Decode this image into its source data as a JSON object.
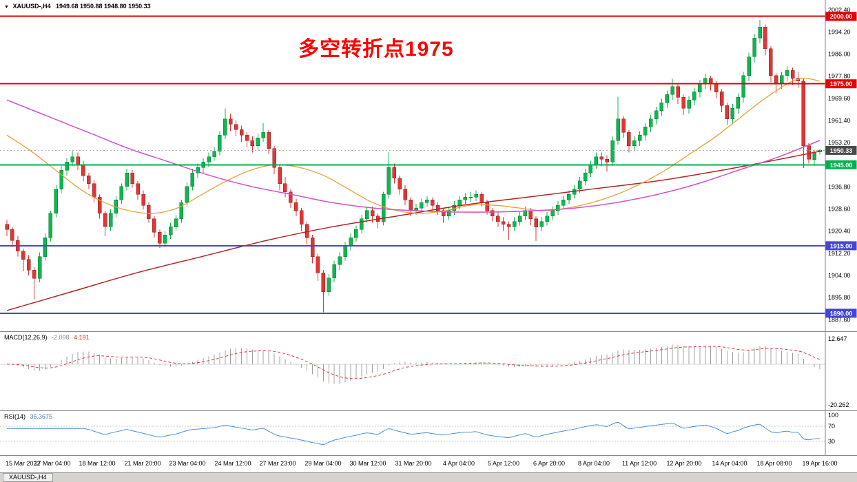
{
  "header": {
    "collapse_icon": "▼",
    "symbol": "XAUUSD-,H4",
    "ohlc": "1949.68 1950.88 1948.80 1950.33"
  },
  "bottom": {
    "tab": "XAUUSD-,H4"
  },
  "chart_data": {
    "type": "candlestick",
    "symbol": "XAUUSD-",
    "timeframe": "H4",
    "annotation": "多空转折点1975",
    "annotation_color": "#fe0000",
    "y_axis": {
      "max": 2004,
      "min": 1884,
      "ticks": [
        "2002.40",
        "1994.20",
        "1986.00",
        "1977.80",
        "1969.60",
        "1961.40",
        "1953.20",
        "1945.00",
        "1936.80",
        "1928.60",
        "1920.40",
        "1912.20",
        "1904.00",
        "1895.80",
        "1887.60"
      ]
    },
    "x_labels": [
      "15 Mar 2022",
      "17 Mar 04:00",
      "18 Mar 12:00",
      "21 Mar 20:00",
      "23 Mar 04:00",
      "24 Mar 12:00",
      "27 Mar 23:00",
      "29 Mar 04:00",
      "30 Mar 12:00",
      "31 Mar 20:00",
      "4 Apr 04:00",
      "5 Apr 12:00",
      "6 Apr 20:00",
      "8 Apr 04:00",
      "11 Apr 12:00",
      "12 Apr 20:00",
      "14 Apr 04:00",
      "18 Apr 08:00",
      "19 Apr 16:00"
    ],
    "candle_colors": {
      "up": "#0fb64f",
      "up_border": "#067a33",
      "down": "#e03535",
      "down_border": "#8f1f1f"
    },
    "levels": [
      {
        "price": 2000.0,
        "label": "2000.00",
        "color": "#e60000"
      },
      {
        "price": 1975.0,
        "label": "1975.00",
        "color": "#e60000"
      },
      {
        "price": 1945.0,
        "label": "1945.00",
        "color": "#00b050"
      },
      {
        "price": 1915.0,
        "label": "1915.00",
        "color": "#4545d5"
      },
      {
        "price": 1890.0,
        "label": "1890.00",
        "color": "#4545d5"
      }
    ],
    "current_price": {
      "value": 1950.33,
      "label": "1950.33",
      "color": "#4a4a4a"
    },
    "moving_averages": [
      {
        "name": "ma-long-darkred",
        "color": "#b22222",
        "width": 1.5,
        "points": [
          [
            0,
            1891
          ],
          [
            0.08,
            1898
          ],
          [
            0.16,
            1905
          ],
          [
            0.24,
            1911
          ],
          [
            0.32,
            1917
          ],
          [
            0.4,
            1922
          ],
          [
            0.48,
            1926
          ],
          [
            0.56,
            1930
          ],
          [
            0.64,
            1933
          ],
          [
            0.72,
            1936
          ],
          [
            0.8,
            1939
          ],
          [
            0.88,
            1943
          ],
          [
            0.95,
            1947
          ],
          [
            1,
            1950
          ]
        ]
      },
      {
        "name": "ma-medium-orange",
        "color": "#e5a13c",
        "width": 1.3,
        "points": [
          [
            0,
            1956
          ],
          [
            0.03,
            1950
          ],
          [
            0.06,
            1943
          ],
          [
            0.09,
            1936
          ],
          [
            0.12,
            1931
          ],
          [
            0.15,
            1928
          ],
          [
            0.18,
            1927
          ],
          [
            0.21,
            1929
          ],
          [
            0.24,
            1934
          ],
          [
            0.27,
            1939
          ],
          [
            0.3,
            1943
          ],
          [
            0.33,
            1945
          ],
          [
            0.36,
            1944
          ],
          [
            0.39,
            1941
          ],
          [
            0.42,
            1936
          ],
          [
            0.45,
            1931
          ],
          [
            0.48,
            1928
          ],
          [
            0.51,
            1927
          ],
          [
            0.54,
            1928
          ],
          [
            0.57,
            1930
          ],
          [
            0.6,
            1930
          ],
          [
            0.63,
            1929
          ],
          [
            0.66,
            1928
          ],
          [
            0.69,
            1929
          ],
          [
            0.72,
            1931
          ],
          [
            0.75,
            1934
          ],
          [
            0.78,
            1938
          ],
          [
            0.81,
            1943
          ],
          [
            0.84,
            1949
          ],
          [
            0.87,
            1955
          ],
          [
            0.9,
            1962
          ],
          [
            0.93,
            1969
          ],
          [
            0.96,
            1975
          ],
          [
            0.98,
            1977
          ],
          [
            1,
            1976
          ]
        ]
      },
      {
        "name": "ma-slow-magenta",
        "color": "#d050c8",
        "width": 1.5,
        "points": [
          [
            0,
            1969
          ],
          [
            0.05,
            1963
          ],
          [
            0.1,
            1957
          ],
          [
            0.15,
            1951
          ],
          [
            0.2,
            1946
          ],
          [
            0.25,
            1941
          ],
          [
            0.3,
            1937
          ],
          [
            0.35,
            1934
          ],
          [
            0.4,
            1931
          ],
          [
            0.45,
            1929
          ],
          [
            0.5,
            1928
          ],
          [
            0.55,
            1927.5
          ],
          [
            0.6,
            1927.5
          ],
          [
            0.65,
            1928
          ],
          [
            0.7,
            1929
          ],
          [
            0.75,
            1931
          ],
          [
            0.8,
            1934
          ],
          [
            0.85,
            1938
          ],
          [
            0.9,
            1943
          ],
          [
            0.95,
            1948
          ],
          [
            1,
            1954
          ]
        ]
      }
    ],
    "candles": [
      [
        1923,
        1924.5,
        1918.5,
        1921
      ],
      [
        1921,
        1922,
        1914.5,
        1917
      ],
      [
        1917,
        1918.5,
        1911,
        1913
      ],
      [
        1913,
        1914,
        1905.5,
        1910
      ],
      [
        1910,
        1911.5,
        1904,
        1906
      ],
      [
        1906,
        1907,
        1895.2,
        1903
      ],
      [
        1903,
        1912.5,
        1901.5,
        1911
      ],
      [
        1911,
        1919.5,
        1909.5,
        1918
      ],
      [
        1918,
        1928,
        1916.5,
        1927
      ],
      [
        1927,
        1937.5,
        1925.5,
        1936
      ],
      [
        1936,
        1944.5,
        1934.5,
        1943
      ],
      [
        1943,
        1947.5,
        1941,
        1946
      ],
      [
        1946,
        1950.2,
        1944.5,
        1948
      ],
      [
        1948,
        1949.5,
        1943,
        1945
      ],
      [
        1945,
        1946.5,
        1939,
        1941
      ],
      [
        1941,
        1942,
        1936,
        1938
      ],
      [
        1938,
        1939.5,
        1931,
        1933
      ],
      [
        1933,
        1934,
        1925,
        1927
      ],
      [
        1927,
        1928,
        1918.5,
        1922
      ],
      [
        1922,
        1928.5,
        1920.5,
        1927
      ],
      [
        1927,
        1933.5,
        1925.5,
        1932
      ],
      [
        1932,
        1938,
        1930.5,
        1937
      ],
      [
        1937,
        1943.5,
        1935.5,
        1942
      ],
      [
        1942,
        1943,
        1936.5,
        1938
      ],
      [
        1938,
        1939,
        1932,
        1934
      ],
      [
        1934,
        1935.5,
        1928.5,
        1930
      ],
      [
        1930,
        1931,
        1923.5,
        1925
      ],
      [
        1925,
        1926,
        1918,
        1920
      ],
      [
        1920,
        1921,
        1914.2,
        1916
      ],
      [
        1916,
        1920.5,
        1914.5,
        1919
      ],
      [
        1919,
        1923.5,
        1917.5,
        1922
      ],
      [
        1922,
        1926.5,
        1920.5,
        1925
      ],
      [
        1925,
        1932,
        1923.5,
        1931
      ],
      [
        1931,
        1938.5,
        1929.5,
        1937
      ],
      [
        1937,
        1943.5,
        1935.5,
        1942
      ],
      [
        1942,
        1945.5,
        1940,
        1944
      ],
      [
        1944,
        1947.5,
        1942,
        1946
      ],
      [
        1946,
        1949.5,
        1944,
        1948
      ],
      [
        1948,
        1951.5,
        1946.5,
        1950
      ],
      [
        1950,
        1957.5,
        1948.5,
        1956
      ],
      [
        1956,
        1965.8,
        1954.5,
        1962
      ],
      [
        1962,
        1964,
        1957.5,
        1960
      ],
      [
        1960,
        1961.5,
        1955.5,
        1958
      ],
      [
        1958,
        1959.5,
        1953.5,
        1956
      ],
      [
        1956,
        1957,
        1951.5,
        1954
      ],
      [
        1954,
        1955.5,
        1949.5,
        1952
      ],
      [
        1952,
        1956.5,
        1950.5,
        1955
      ],
      [
        1955,
        1960.5,
        1953.5,
        1957
      ],
      [
        1957,
        1958,
        1949,
        1951
      ],
      [
        1951,
        1952,
        1941.5,
        1944
      ],
      [
        1944,
        1945,
        1935.5,
        1938
      ],
      [
        1938,
        1940.5,
        1933,
        1935
      ],
      [
        1935,
        1936,
        1929,
        1931
      ],
      [
        1931,
        1932.5,
        1926,
        1928
      ],
      [
        1928,
        1929,
        1920.5,
        1923
      ],
      [
        1923,
        1924,
        1915.5,
        1918
      ],
      [
        1918,
        1919,
        1908.5,
        1911
      ],
      [
        1911,
        1912,
        1902,
        1905
      ],
      [
        1905,
        1906,
        1890.3,
        1898
      ],
      [
        1898,
        1904.5,
        1896.5,
        1903
      ],
      [
        1903,
        1909.5,
        1901.5,
        1908
      ],
      [
        1908,
        1912.5,
        1906,
        1911
      ],
      [
        1911,
        1916.5,
        1909.5,
        1915
      ],
      [
        1915,
        1919.5,
        1913,
        1918
      ],
      [
        1918,
        1922.5,
        1916.5,
        1921
      ],
      [
        1921,
        1926.5,
        1919.5,
        1925
      ],
      [
        1925,
        1929.5,
        1923.5,
        1928
      ],
      [
        1928,
        1929.5,
        1923.5,
        1926
      ],
      [
        1926,
        1927,
        1921.5,
        1924
      ],
      [
        1924,
        1935,
        1922.5,
        1934
      ],
      [
        1934,
        1949.8,
        1932.5,
        1944
      ],
      [
        1944,
        1945.5,
        1938,
        1940
      ],
      [
        1940,
        1941,
        1934,
        1936
      ],
      [
        1936,
        1937.5,
        1930,
        1932
      ],
      [
        1932,
        1933,
        1926,
        1928
      ],
      [
        1928,
        1930.5,
        1926.5,
        1929
      ],
      [
        1929,
        1932.5,
        1927.5,
        1931
      ],
      [
        1931,
        1933.5,
        1929.5,
        1932
      ],
      [
        1932,
        1933,
        1928.5,
        1930
      ],
      [
        1930,
        1931,
        1926.5,
        1928
      ],
      [
        1928,
        1929,
        1923.5,
        1926
      ],
      [
        1926,
        1929.5,
        1924.5,
        1928
      ],
      [
        1928,
        1931.5,
        1926.5,
        1930
      ],
      [
        1930,
        1933.5,
        1928.5,
        1932
      ],
      [
        1932,
        1934.5,
        1930.5,
        1933
      ],
      [
        1933,
        1935,
        1931,
        1933
      ],
      [
        1933,
        1935.5,
        1931.5,
        1934
      ],
      [
        1934,
        1935,
        1929.5,
        1931
      ],
      [
        1931,
        1932,
        1926.5,
        1928
      ],
      [
        1928,
        1929,
        1924,
        1926
      ],
      [
        1926,
        1927.5,
        1922,
        1924
      ],
      [
        1924,
        1925.5,
        1920.5,
        1923
      ],
      [
        1923,
        1924,
        1917.3,
        1922
      ],
      [
        1922,
        1925.5,
        1920.5,
        1924
      ],
      [
        1924,
        1927.5,
        1922.5,
        1926
      ],
      [
        1926,
        1929.5,
        1924.5,
        1928
      ],
      [
        1928,
        1929,
        1922.5,
        1925
      ],
      [
        1925,
        1926,
        1916.8,
        1922
      ],
      [
        1922,
        1925.5,
        1920.5,
        1924
      ],
      [
        1924,
        1927.5,
        1922.5,
        1926
      ],
      [
        1926,
        1929.5,
        1924.5,
        1928
      ],
      [
        1928,
        1931.5,
        1926.5,
        1930
      ],
      [
        1930,
        1933.5,
        1928.5,
        1932
      ],
      [
        1932,
        1935.5,
        1930.5,
        1934
      ],
      [
        1934,
        1937.5,
        1932.5,
        1936
      ],
      [
        1936,
        1940.5,
        1934.5,
        1939
      ],
      [
        1939,
        1943.5,
        1937.5,
        1942
      ],
      [
        1942,
        1946.5,
        1940.5,
        1945
      ],
      [
        1945,
        1949.5,
        1943.5,
        1948
      ],
      [
        1948,
        1949.5,
        1944.5,
        1947
      ],
      [
        1947,
        1948.5,
        1942.5,
        1946
      ],
      [
        1946,
        1955.5,
        1944.5,
        1954
      ],
      [
        1954,
        1970.2,
        1952.5,
        1962
      ],
      [
        1962,
        1963,
        1955,
        1957
      ],
      [
        1957,
        1958,
        1949.5,
        1952
      ],
      [
        1952,
        1955.5,
        1950,
        1954
      ],
      [
        1954,
        1957.5,
        1952,
        1956
      ],
      [
        1956,
        1960.5,
        1954,
        1959
      ],
      [
        1959,
        1963.5,
        1957,
        1962
      ],
      [
        1962,
        1966.5,
        1960,
        1965
      ],
      [
        1965,
        1969.5,
        1963,
        1968
      ],
      [
        1968,
        1972.5,
        1966,
        1971
      ],
      [
        1971,
        1976.8,
        1969,
        1974
      ],
      [
        1974,
        1975,
        1967.5,
        1970
      ],
      [
        1970,
        1971,
        1963.5,
        1966
      ],
      [
        1966,
        1970.5,
        1964,
        1969
      ],
      [
        1969,
        1973.5,
        1967,
        1972
      ],
      [
        1972,
        1976.5,
        1970,
        1975
      ],
      [
        1975,
        1978.8,
        1973,
        1977
      ],
      [
        1977,
        1978,
        1972.5,
        1975
      ],
      [
        1975,
        1976,
        1969.5,
        1972
      ],
      [
        1972,
        1973,
        1964.5,
        1967
      ],
      [
        1967,
        1968,
        1959.8,
        1962
      ],
      [
        1962,
        1967.5,
        1960,
        1966
      ],
      [
        1966,
        1971.5,
        1964,
        1970
      ],
      [
        1970,
        1979.5,
        1968,
        1978
      ],
      [
        1978,
        1986.5,
        1976,
        1985
      ],
      [
        1985,
        1993.5,
        1983,
        1992
      ],
      [
        1992,
        1998.6,
        1990,
        1996
      ],
      [
        1996,
        1997,
        1985.5,
        1988
      ],
      [
        1988,
        1989,
        1975.5,
        1978
      ],
      [
        1978,
        1979,
        1971.5,
        1975
      ],
      [
        1975,
        1979.5,
        1973,
        1978
      ],
      [
        1978,
        1981.5,
        1976,
        1980
      ],
      [
        1980,
        1981,
        1974.5,
        1977
      ],
      [
        1977,
        1979.5,
        1973.5,
        1976
      ],
      [
        1976,
        1977,
        1943.8,
        1952
      ],
      [
        1952,
        1953,
        1945.5,
        1947
      ],
      [
        1947,
        1950.5,
        1944.8,
        1949.7
      ],
      [
        1949.68,
        1950.88,
        1948.8,
        1950.33
      ]
    ],
    "indicators": {
      "macd": {
        "label": "MACD(12,26,9)",
        "value_main": "-2.098",
        "value_signal": "4.191",
        "scale_max": "12.647",
        "scale_min": "-20.262",
        "fast": 12,
        "slow": 26,
        "signal": 9,
        "histogram_color": "#a0a0a0",
        "signal_color": "#d23b3b"
      },
      "rsi": {
        "label": "RSI(14)",
        "value": "36.3675",
        "period": 14,
        "levels": [
          "100",
          "70",
          "30"
        ],
        "line_color": "#4a8fd2"
      }
    }
  }
}
